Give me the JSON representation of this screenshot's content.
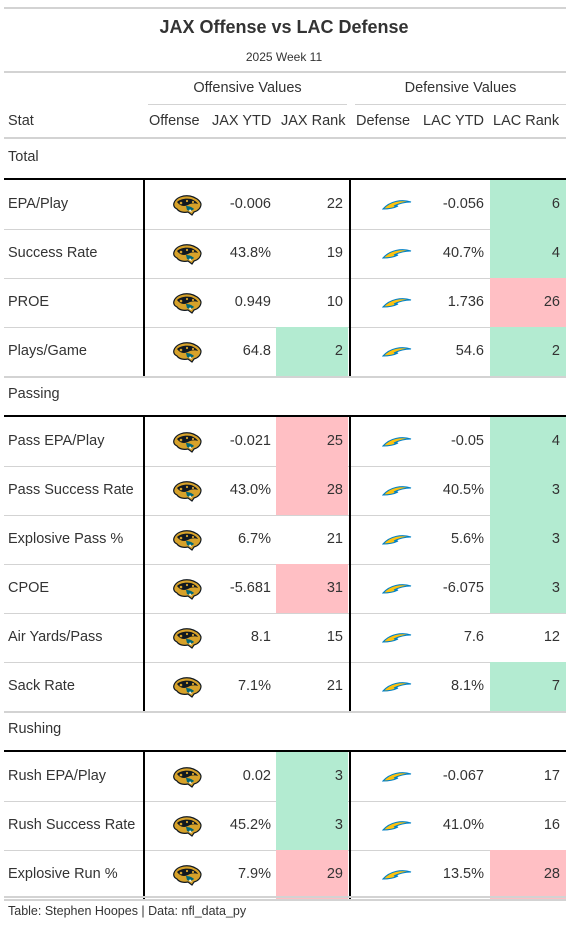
{
  "title": "JAX Offense vs LAC Defense",
  "subtitle": "2025 Week 11",
  "spanners": {
    "offense": "Offensive Values",
    "defense": "Defensive Values"
  },
  "columns": [
    "Stat",
    "Offense",
    "JAX YTD",
    "JAX Rank",
    "Defense",
    "LAC YTD",
    "LAC Rank"
  ],
  "colors": {
    "good": "#b3ebd1",
    "bad": "#ffbfc4",
    "jax_teal": "#006778",
    "jax_gold": "#d7a22a",
    "lac_blue": "#0080c6",
    "lac_gold": "#ffc20e"
  },
  "groups": [
    {
      "name": "Total",
      "rows": [
        {
          "stat": "EPA/Play",
          "off_logo": "jaguars-logo",
          "jax_ytd": "-0.006",
          "jax_rank": "22",
          "jax_rank_color": "none",
          "def_logo": "chargers-logo",
          "lac_ytd": "-0.056",
          "lac_rank": "6",
          "lac_rank_color": "good"
        },
        {
          "stat": "Success Rate",
          "off_logo": "jaguars-logo",
          "jax_ytd": "43.8%",
          "jax_rank": "19",
          "jax_rank_color": "none",
          "def_logo": "chargers-logo",
          "lac_ytd": "40.7%",
          "lac_rank": "4",
          "lac_rank_color": "good"
        },
        {
          "stat": "PROE",
          "off_logo": "jaguars-logo",
          "jax_ytd": "0.949",
          "jax_rank": "10",
          "jax_rank_color": "none",
          "def_logo": "chargers-logo",
          "lac_ytd": "1.736",
          "lac_rank": "26",
          "lac_rank_color": "bad"
        },
        {
          "stat": "Plays/Game",
          "off_logo": "jaguars-logo",
          "jax_ytd": "64.8",
          "jax_rank": "2",
          "jax_rank_color": "good",
          "def_logo": "chargers-logo",
          "lac_ytd": "54.6",
          "lac_rank": "2",
          "lac_rank_color": "good"
        }
      ]
    },
    {
      "name": "Passing",
      "rows": [
        {
          "stat": "Pass EPA/Play",
          "off_logo": "jaguars-logo",
          "jax_ytd": "-0.021",
          "jax_rank": "25",
          "jax_rank_color": "bad",
          "def_logo": "chargers-logo",
          "lac_ytd": "-0.05",
          "lac_rank": "4",
          "lac_rank_color": "good"
        },
        {
          "stat": "Pass Success Rate",
          "off_logo": "jaguars-logo",
          "jax_ytd": "43.0%",
          "jax_rank": "28",
          "jax_rank_color": "bad",
          "def_logo": "chargers-logo",
          "lac_ytd": "40.5%",
          "lac_rank": "3",
          "lac_rank_color": "good"
        },
        {
          "stat": "Explosive Pass %",
          "off_logo": "jaguars-logo",
          "jax_ytd": "6.7%",
          "jax_rank": "21",
          "jax_rank_color": "none",
          "def_logo": "chargers-logo",
          "lac_ytd": "5.6%",
          "lac_rank": "3",
          "lac_rank_color": "good"
        },
        {
          "stat": "CPOE",
          "off_logo": "jaguars-logo",
          "jax_ytd": "-5.681",
          "jax_rank": "31",
          "jax_rank_color": "bad",
          "def_logo": "chargers-logo",
          "lac_ytd": "-6.075",
          "lac_rank": "3",
          "lac_rank_color": "good"
        },
        {
          "stat": "Air Yards/Pass",
          "off_logo": "jaguars-logo",
          "jax_ytd": "8.1",
          "jax_rank": "15",
          "jax_rank_color": "none",
          "def_logo": "chargers-logo",
          "lac_ytd": "7.6",
          "lac_rank": "12",
          "lac_rank_color": "none"
        },
        {
          "stat": "Sack Rate",
          "off_logo": "jaguars-logo",
          "jax_ytd": "7.1%",
          "jax_rank": "21",
          "jax_rank_color": "none",
          "def_logo": "chargers-logo",
          "lac_ytd": "8.1%",
          "lac_rank": "7",
          "lac_rank_color": "good"
        }
      ]
    },
    {
      "name": "Rushing",
      "rows": [
        {
          "stat": "Rush EPA/Play",
          "off_logo": "jaguars-logo",
          "jax_ytd": "0.02",
          "jax_rank": "3",
          "jax_rank_color": "good",
          "def_logo": "chargers-logo",
          "lac_ytd": "-0.067",
          "lac_rank": "17",
          "lac_rank_color": "none"
        },
        {
          "stat": "Rush Success Rate",
          "off_logo": "jaguars-logo",
          "jax_ytd": "45.2%",
          "jax_rank": "3",
          "jax_rank_color": "good",
          "def_logo": "chargers-logo",
          "lac_ytd": "41.0%",
          "lac_rank": "16",
          "lac_rank_color": "none"
        },
        {
          "stat": "Explosive Run %",
          "off_logo": "jaguars-logo",
          "jax_ytd": "7.9%",
          "jax_rank": "29",
          "jax_rank_color": "bad",
          "def_logo": "chargers-logo",
          "lac_ytd": "13.5%",
          "lac_rank": "28",
          "lac_rank_color": "bad"
        }
      ]
    }
  ],
  "footer": "Table: Stephen Hoopes | Data: nfl_data_py"
}
